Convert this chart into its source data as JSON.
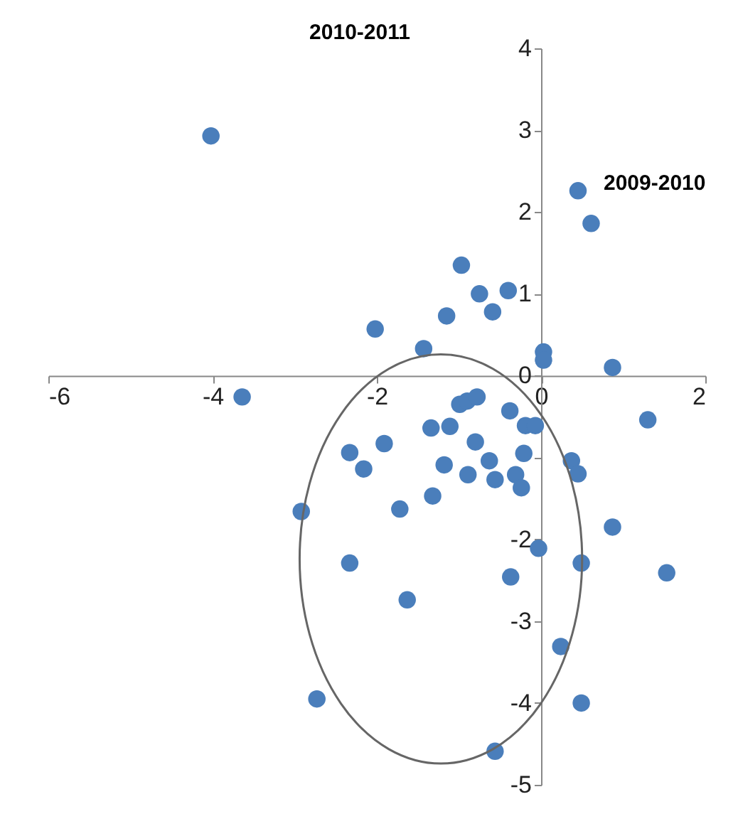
{
  "chart_data": {
    "type": "scatter",
    "xlabel": "2009-2010",
    "ylabel": "2010-2011",
    "xlim": [
      -6,
      2
    ],
    "ylim": [
      -5,
      4
    ],
    "xticks": [
      -6,
      -4,
      -2,
      0,
      2
    ],
    "yticks": [
      -5,
      -4,
      -3,
      -2,
      {
        "value": -1,
        "label": null
      },
      0,
      1,
      2,
      3,
      4
    ],
    "grid": false,
    "legend": false,
    "marker": "circle",
    "series": [
      {
        "color": "#4a7ebb",
        "x": [
          -4.02,
          0.45,
          0.61,
          -3.64,
          -2.02,
          -0.97,
          -0.75,
          -0.4,
          -1.15,
          -0.59,
          -1.43,
          0.03,
          0.03,
          0.87,
          1.3,
          -0.99,
          -0.9,
          -0.78,
          -1.34,
          -1.11,
          -0.38,
          -0.19,
          -0.07,
          -1.91,
          -2.33,
          -2.16,
          -0.8,
          -1.18,
          -0.89,
          -0.63,
          -0.56,
          -0.31,
          -0.21,
          -0.24,
          0.37,
          0.45,
          -1.32,
          -1.72,
          -2.92,
          0.87,
          -0.03,
          -2.33,
          0.49,
          -0.37,
          1.53,
          -1.63,
          0.24,
          -2.73,
          0.49,
          -0.56
        ],
        "values": [
          2.93,
          2.26,
          1.86,
          -0.26,
          0.57,
          1.35,
          1.0,
          1.04,
          0.73,
          0.78,
          0.33,
          0.29,
          0.19,
          0.1,
          -0.54,
          -0.35,
          -0.31,
          -0.26,
          -0.64,
          -0.62,
          -0.43,
          -0.61,
          -0.61,
          -0.83,
          -0.94,
          -1.14,
          -0.81,
          -1.09,
          -1.21,
          -1.04,
          -1.27,
          -1.21,
          -0.95,
          -1.37,
          -1.04,
          -1.2,
          -1.47,
          -1.63,
          -1.66,
          -1.85,
          -2.11,
          -2.29,
          -2.29,
          -2.46,
          -2.41,
          -2.74,
          -3.31,
          -3.95,
          -4.0,
          -4.59
        ]
      }
    ]
  }
}
